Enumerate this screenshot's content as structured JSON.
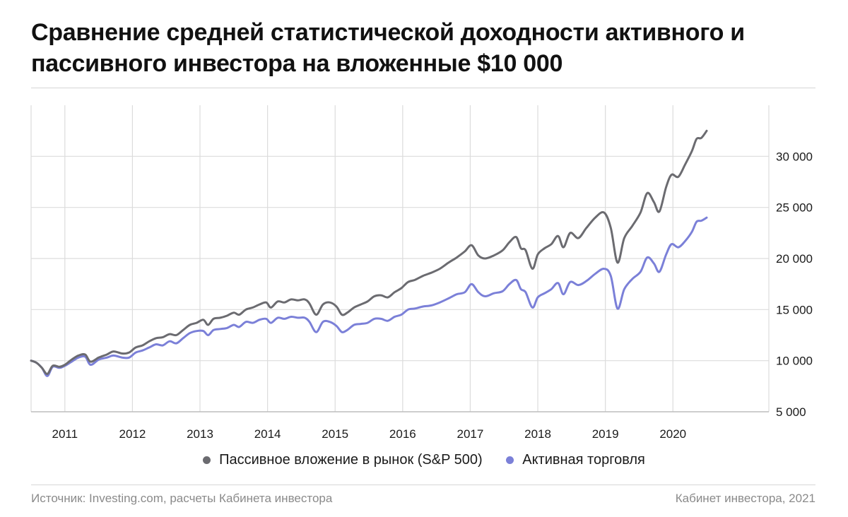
{
  "title": "Сравнение средней статистической доходности активного и пассивного инвестора на вложенные $10 000",
  "source": "Источник: Investing.com, расчеты Кабинета инвестора",
  "credit": "Кабинет инвестора, 2021",
  "chart_data": {
    "type": "line",
    "x_ticks": [
      "2011",
      "2012",
      "2013",
      "2014",
      "2015",
      "2016",
      "2017",
      "2018",
      "2019",
      "2020"
    ],
    "y_ticks": [
      5000,
      10000,
      15000,
      20000,
      25000,
      30000
    ],
    "y_tick_labels": [
      "5 000",
      "10 000",
      "15 000",
      "20 000",
      "25 000",
      "30 000"
    ],
    "xlim": [
      2010.5,
      2021.42
    ],
    "ylim": [
      5000,
      35000
    ],
    "grid": true,
    "legend_position": "bottom",
    "series": [
      {
        "name": "Пассивное вложение в рынок (S&P 500)",
        "color": "#6b6b70",
        "points": [
          [
            2010.5,
            10000
          ],
          [
            2010.58,
            9800
          ],
          [
            2010.66,
            9300
          ],
          [
            2010.74,
            8700
          ],
          [
            2010.82,
            9500
          ],
          [
            2010.92,
            9400
          ],
          [
            2011.0,
            9600
          ],
          [
            2011.1,
            10100
          ],
          [
            2011.2,
            10500
          ],
          [
            2011.3,
            10600
          ],
          [
            2011.38,
            9900
          ],
          [
            2011.5,
            10300
          ],
          [
            2011.62,
            10600
          ],
          [
            2011.72,
            10900
          ],
          [
            2011.85,
            10700
          ],
          [
            2011.95,
            10800
          ],
          [
            2012.05,
            11300
          ],
          [
            2012.15,
            11500
          ],
          [
            2012.25,
            11900
          ],
          [
            2012.35,
            12200
          ],
          [
            2012.45,
            12300
          ],
          [
            2012.55,
            12600
          ],
          [
            2012.65,
            12500
          ],
          [
            2012.75,
            13000
          ],
          [
            2012.85,
            13500
          ],
          [
            2012.95,
            13700
          ],
          [
            2013.05,
            14000
          ],
          [
            2013.12,
            13500
          ],
          [
            2013.2,
            14100
          ],
          [
            2013.3,
            14200
          ],
          [
            2013.4,
            14400
          ],
          [
            2013.5,
            14700
          ],
          [
            2013.58,
            14500
          ],
          [
            2013.68,
            15000
          ],
          [
            2013.78,
            15200
          ],
          [
            2013.88,
            15500
          ],
          [
            2013.98,
            15700
          ],
          [
            2014.05,
            15200
          ],
          [
            2014.15,
            15800
          ],
          [
            2014.25,
            15700
          ],
          [
            2014.35,
            16000
          ],
          [
            2014.45,
            15900
          ],
          [
            2014.55,
            16000
          ],
          [
            2014.62,
            15600
          ],
          [
            2014.72,
            14500
          ],
          [
            2014.82,
            15500
          ],
          [
            2014.92,
            15700
          ],
          [
            2015.02,
            15300
          ],
          [
            2015.1,
            14500
          ],
          [
            2015.18,
            14700
          ],
          [
            2015.28,
            15200
          ],
          [
            2015.38,
            15500
          ],
          [
            2015.48,
            15800
          ],
          [
            2015.58,
            16300
          ],
          [
            2015.68,
            16400
          ],
          [
            2015.78,
            16200
          ],
          [
            2015.88,
            16700
          ],
          [
            2015.98,
            17100
          ],
          [
            2016.08,
            17700
          ],
          [
            2016.18,
            17900
          ],
          [
            2016.3,
            18300
          ],
          [
            2016.42,
            18600
          ],
          [
            2016.55,
            19000
          ],
          [
            2016.68,
            19600
          ],
          [
            2016.8,
            20100
          ],
          [
            2016.92,
            20700
          ],
          [
            2017.02,
            21300
          ],
          [
            2017.12,
            20300
          ],
          [
            2017.22,
            20000
          ],
          [
            2017.35,
            20300
          ],
          [
            2017.48,
            20800
          ],
          [
            2017.58,
            21600
          ],
          [
            2017.68,
            22100
          ],
          [
            2017.75,
            21000
          ],
          [
            2017.82,
            20800
          ],
          [
            2017.92,
            19000
          ],
          [
            2018.0,
            20400
          ],
          [
            2018.1,
            21000
          ],
          [
            2018.2,
            21400
          ],
          [
            2018.3,
            22200
          ],
          [
            2018.38,
            21100
          ],
          [
            2018.48,
            22500
          ],
          [
            2018.6,
            22000
          ],
          [
            2018.72,
            23000
          ],
          [
            2018.85,
            24000
          ],
          [
            2018.98,
            24500
          ],
          [
            2019.08,
            23000
          ],
          [
            2019.18,
            19600
          ],
          [
            2019.28,
            22000
          ],
          [
            2019.4,
            23200
          ],
          [
            2019.52,
            24500
          ],
          [
            2019.62,
            26400
          ],
          [
            2019.72,
            25500
          ],
          [
            2019.8,
            24600
          ],
          [
            2019.9,
            27000
          ],
          [
            2019.98,
            28200
          ],
          [
            2020.08,
            28000
          ],
          [
            2020.18,
            29200
          ],
          [
            2020.28,
            30500
          ],
          [
            2020.35,
            31700
          ],
          [
            2020.42,
            31800
          ],
          [
            2020.5,
            32500
          ]
        ]
      },
      {
        "name": "Активная торговля",
        "color": "#7b80d8",
        "points": [
          [
            2010.5,
            10000
          ],
          [
            2010.58,
            9800
          ],
          [
            2010.66,
            9300
          ],
          [
            2010.74,
            8500
          ],
          [
            2010.82,
            9400
          ],
          [
            2010.92,
            9300
          ],
          [
            2011.0,
            9500
          ],
          [
            2011.1,
            9900
          ],
          [
            2011.2,
            10300
          ],
          [
            2011.3,
            10400
          ],
          [
            2011.38,
            9600
          ],
          [
            2011.5,
            10100
          ],
          [
            2011.62,
            10300
          ],
          [
            2011.72,
            10500
          ],
          [
            2011.85,
            10300
          ],
          [
            2011.95,
            10300
          ],
          [
            2012.05,
            10800
          ],
          [
            2012.15,
            11000
          ],
          [
            2012.25,
            11300
          ],
          [
            2012.35,
            11600
          ],
          [
            2012.45,
            11500
          ],
          [
            2012.55,
            11900
          ],
          [
            2012.65,
            11700
          ],
          [
            2012.75,
            12200
          ],
          [
            2012.85,
            12700
          ],
          [
            2012.95,
            12900
          ],
          [
            2013.05,
            12900
          ],
          [
            2013.12,
            12500
          ],
          [
            2013.2,
            13000
          ],
          [
            2013.3,
            13100
          ],
          [
            2013.4,
            13200
          ],
          [
            2013.5,
            13500
          ],
          [
            2013.58,
            13300
          ],
          [
            2013.68,
            13800
          ],
          [
            2013.78,
            13700
          ],
          [
            2013.88,
            14000
          ],
          [
            2013.98,
            14100
          ],
          [
            2014.05,
            13700
          ],
          [
            2014.15,
            14200
          ],
          [
            2014.25,
            14100
          ],
          [
            2014.35,
            14300
          ],
          [
            2014.45,
            14200
          ],
          [
            2014.55,
            14200
          ],
          [
            2014.62,
            13800
          ],
          [
            2014.72,
            12800
          ],
          [
            2014.82,
            13800
          ],
          [
            2014.92,
            13800
          ],
          [
            2015.02,
            13400
          ],
          [
            2015.1,
            12800
          ],
          [
            2015.18,
            13000
          ],
          [
            2015.28,
            13500
          ],
          [
            2015.38,
            13600
          ],
          [
            2015.48,
            13700
          ],
          [
            2015.58,
            14100
          ],
          [
            2015.68,
            14100
          ],
          [
            2015.78,
            13900
          ],
          [
            2015.88,
            14300
          ],
          [
            2015.98,
            14500
          ],
          [
            2016.08,
            15000
          ],
          [
            2016.18,
            15100
          ],
          [
            2016.3,
            15300
          ],
          [
            2016.42,
            15400
          ],
          [
            2016.55,
            15700
          ],
          [
            2016.68,
            16100
          ],
          [
            2016.8,
            16500
          ],
          [
            2016.92,
            16700
          ],
          [
            2017.02,
            17500
          ],
          [
            2017.12,
            16700
          ],
          [
            2017.22,
            16300
          ],
          [
            2017.35,
            16600
          ],
          [
            2017.48,
            16800
          ],
          [
            2017.58,
            17500
          ],
          [
            2017.68,
            17900
          ],
          [
            2017.75,
            17000
          ],
          [
            2017.82,
            16700
          ],
          [
            2017.92,
            15200
          ],
          [
            2018.0,
            16200
          ],
          [
            2018.1,
            16600
          ],
          [
            2018.2,
            17000
          ],
          [
            2018.3,
            17600
          ],
          [
            2018.38,
            16500
          ],
          [
            2018.48,
            17700
          ],
          [
            2018.6,
            17400
          ],
          [
            2018.72,
            17800
          ],
          [
            2018.85,
            18500
          ],
          [
            2018.98,
            19000
          ],
          [
            2019.08,
            18300
          ],
          [
            2019.18,
            15100
          ],
          [
            2019.28,
            17000
          ],
          [
            2019.4,
            18000
          ],
          [
            2019.52,
            18700
          ],
          [
            2019.62,
            20100
          ],
          [
            2019.72,
            19500
          ],
          [
            2019.8,
            18700
          ],
          [
            2019.9,
            20400
          ],
          [
            2019.98,
            21400
          ],
          [
            2020.08,
            21100
          ],
          [
            2020.18,
            21700
          ],
          [
            2020.28,
            22600
          ],
          [
            2020.35,
            23600
          ],
          [
            2020.42,
            23700
          ],
          [
            2020.5,
            24000
          ]
        ]
      }
    ]
  }
}
